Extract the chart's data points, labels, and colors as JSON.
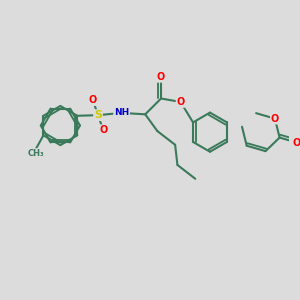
{
  "bg_color": "#dcdcdc",
  "bond_color": "#3a7a5a",
  "bond_width": 1.5,
  "atom_colors": {
    "O": "#ff0000",
    "N": "#0000cc",
    "S": "#cccc00",
    "C": "#3a7a5a",
    "H": "#888888"
  },
  "figsize": [
    3.0,
    3.0
  ],
  "dpi": 100
}
